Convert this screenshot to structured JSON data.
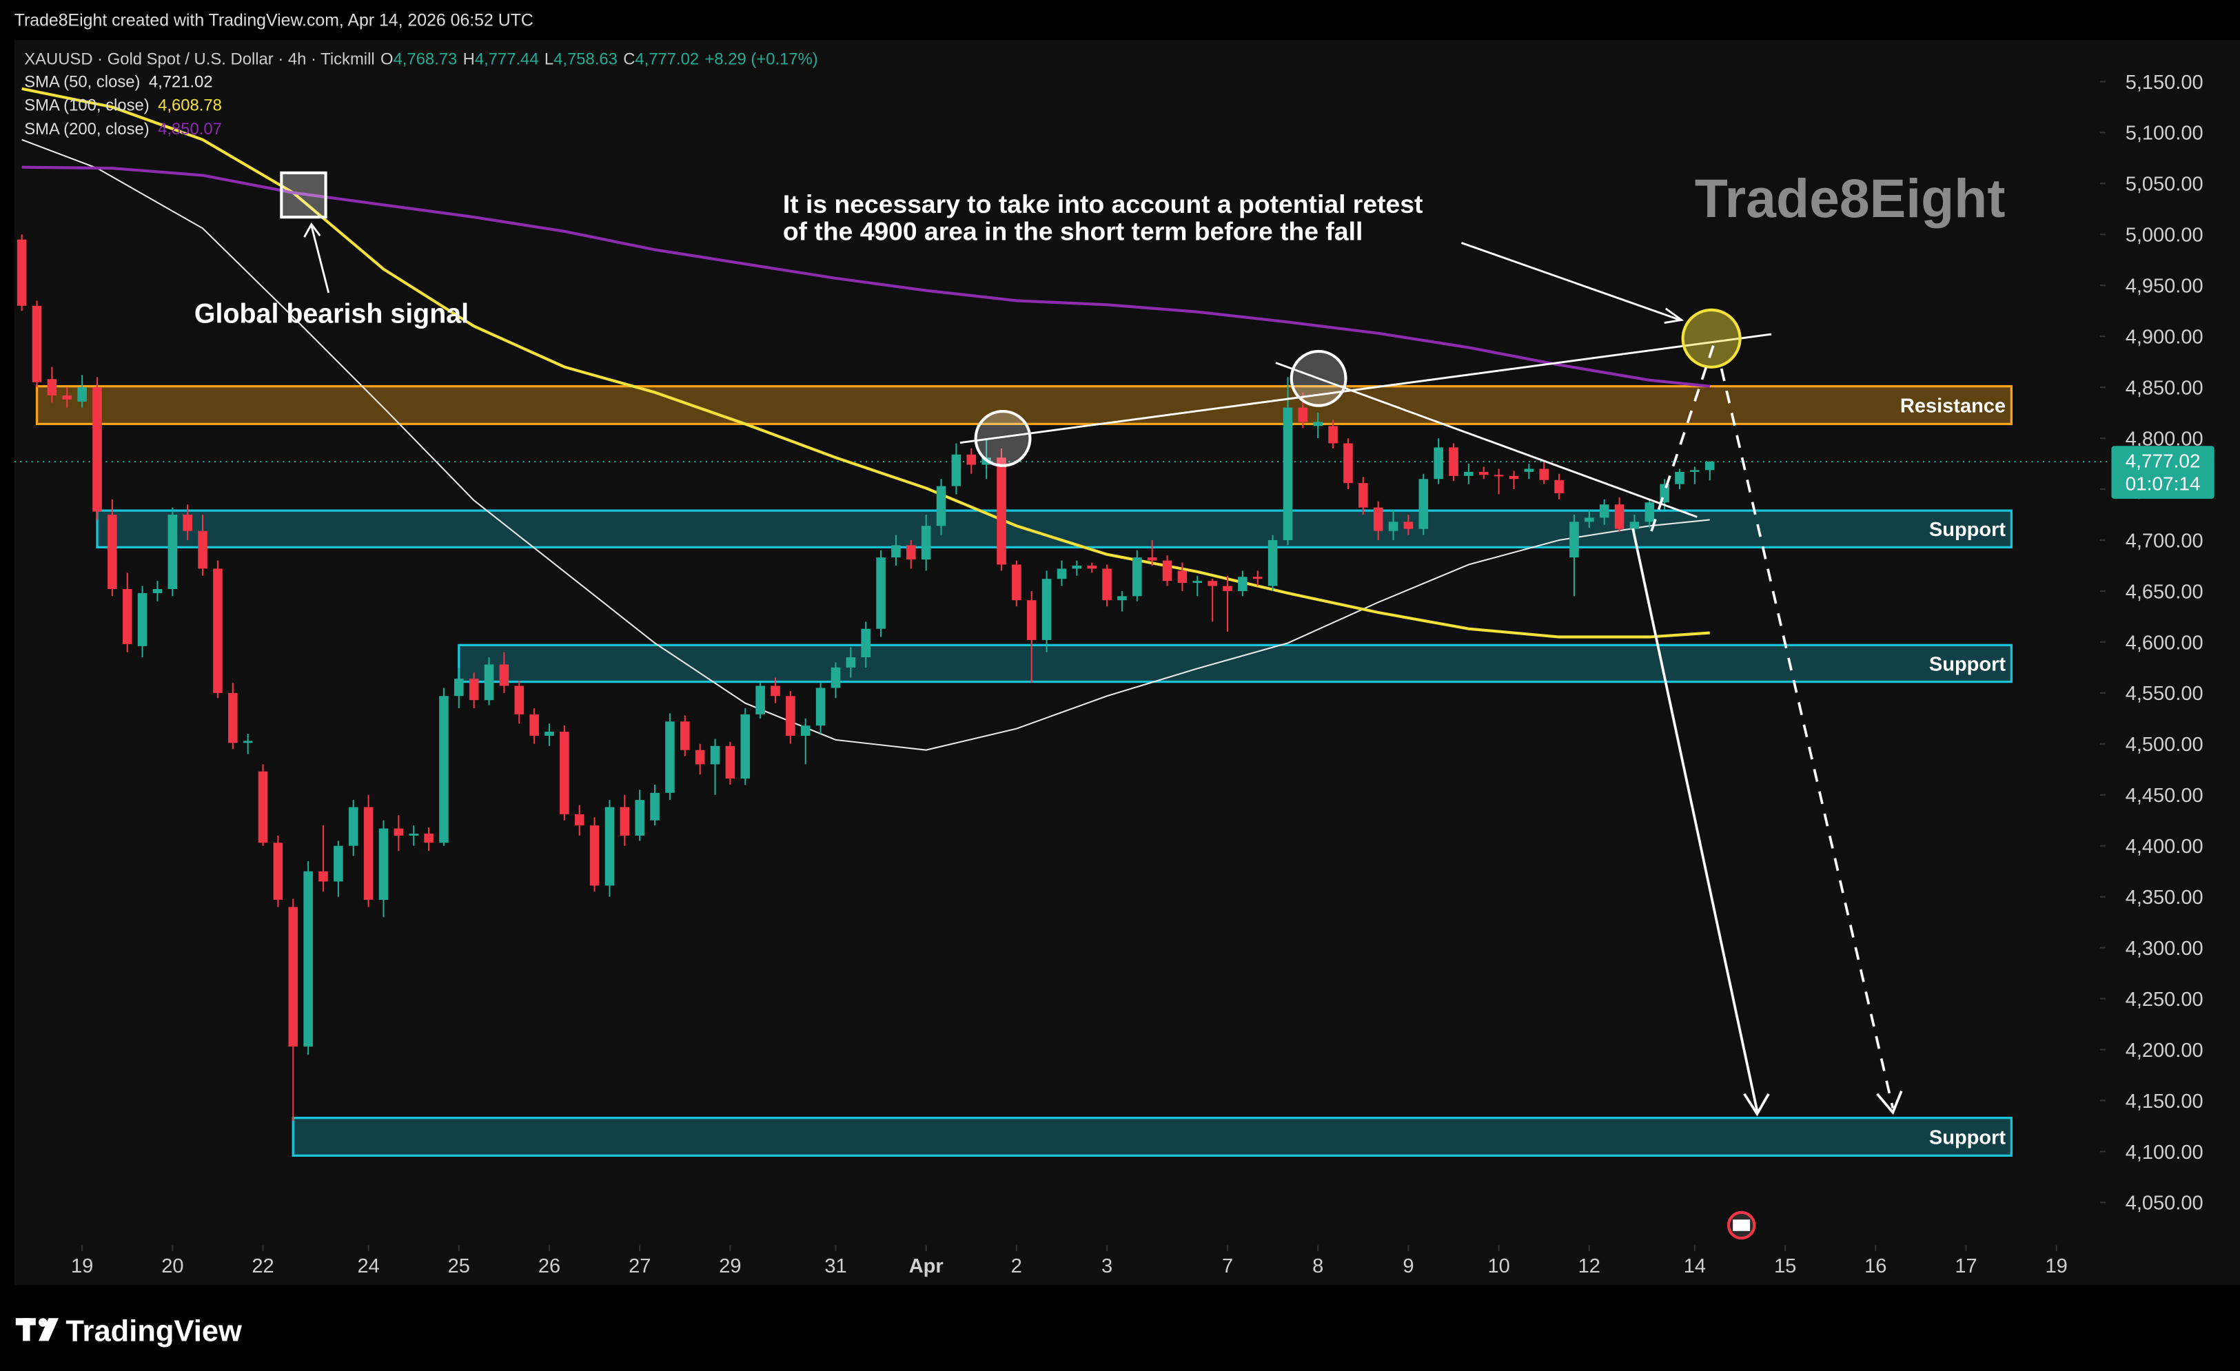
{
  "header": {
    "credit": "Trade8Eight created with TradingView.com, Apr 14, 2026 06:52 UTC",
    "symbol": "XAUUSD · Gold Spot / U.S. Dollar · 4h · Tickmill",
    "o": "O",
    "open": "4,768.73",
    "h": "H",
    "high": "4,777.44",
    "l": "L",
    "low": "4,758.63",
    "c": "C",
    "close": "4,777.02",
    "change": "+8.29 (+0.17%)"
  },
  "chart_data": {
    "type": "candlestick",
    "up_color": "#22ab94",
    "down_color": "#f23645",
    "candles": [
      [
        4995,
        5000,
        4925,
        4930
      ],
      [
        4930,
        4935,
        4850,
        4855
      ],
      [
        4858,
        4870,
        4835,
        4842
      ],
      [
        4842,
        4850,
        4830,
        4838
      ],
      [
        4836,
        4862,
        4830,
        4850
      ],
      [
        4850,
        4860,
        4720,
        4728
      ],
      [
        4725,
        4740,
        4645,
        4652
      ],
      [
        4652,
        4668,
        4590,
        4598
      ],
      [
        4596,
        4655,
        4585,
        4648
      ],
      [
        4648,
        4660,
        4640,
        4652
      ],
      [
        4652,
        4732,
        4645,
        4725
      ],
      [
        4725,
        4735,
        4700,
        4709
      ],
      [
        4709,
        4725,
        4665,
        4672
      ],
      [
        4672,
        4680,
        4545,
        4550
      ],
      [
        4550,
        4560,
        4495,
        4501
      ],
      [
        4501,
        4510,
        4490,
        4503
      ],
      [
        4473,
        4480,
        4400,
        4403
      ],
      [
        4403,
        4410,
        4340,
        4347
      ],
      [
        4340,
        4348,
        4130,
        4203
      ],
      [
        4203,
        4385,
        4195,
        4375
      ],
      [
        4375,
        4420,
        4355,
        4365
      ],
      [
        4365,
        4405,
        4350,
        4400
      ],
      [
        4400,
        4445,
        4390,
        4438
      ],
      [
        4438,
        4450,
        4340,
        4347
      ],
      [
        4347,
        4425,
        4330,
        4417
      ],
      [
        4417,
        4430,
        4395,
        4410
      ],
      [
        4410,
        4420,
        4400,
        4412
      ],
      [
        4412,
        4418,
        4395,
        4403
      ],
      [
        4403,
        4555,
        4400,
        4547
      ],
      [
        4547,
        4575,
        4535,
        4564
      ],
      [
        4564,
        4570,
        4535,
        4543
      ],
      [
        4543,
        4585,
        4538,
        4578
      ],
      [
        4578,
        4590,
        4550,
        4557
      ],
      [
        4557,
        4562,
        4520,
        4529
      ],
      [
        4529,
        4535,
        4500,
        4508
      ],
      [
        4508,
        4520,
        4498,
        4512
      ],
      [
        4512,
        4518,
        4425,
        4431
      ],
      [
        4431,
        4440,
        4410,
        4420
      ],
      [
        4420,
        4428,
        4355,
        4361
      ],
      [
        4361,
        4445,
        4350,
        4438
      ],
      [
        4438,
        4450,
        4400,
        4410
      ],
      [
        4410,
        4455,
        4405,
        4445
      ],
      [
        4425,
        4460,
        4420,
        4452
      ],
      [
        4452,
        4530,
        4445,
        4522
      ],
      [
        4522,
        4528,
        4488,
        4494
      ],
      [
        4494,
        4500,
        4470,
        4480
      ],
      [
        4480,
        4505,
        4450,
        4498
      ],
      [
        4498,
        4502,
        4460,
        4466
      ],
      [
        4466,
        4535,
        4460,
        4529
      ],
      [
        4529,
        4560,
        4525,
        4557
      ],
      [
        4557,
        4565,
        4540,
        4547
      ],
      [
        4547,
        4552,
        4500,
        4508
      ],
      [
        4508,
        4525,
        4480,
        4518
      ],
      [
        4518,
        4560,
        4510,
        4555
      ],
      [
        4555,
        4580,
        4545,
        4575
      ],
      [
        4575,
        4595,
        4565,
        4585
      ],
      [
        4585,
        4620,
        4575,
        4613
      ],
      [
        4613,
        4690,
        4605,
        4683
      ],
      [
        4683,
        4705,
        4675,
        4695
      ],
      [
        4695,
        4700,
        4672,
        4681
      ],
      [
        4681,
        4725,
        4670,
        4714
      ],
      [
        4714,
        4760,
        4705,
        4753
      ],
      [
        4753,
        4795,
        4745,
        4784
      ],
      [
        4784,
        4790,
        4765,
        4774
      ],
      [
        4774,
        4800,
        4760,
        4781
      ],
      [
        4781,
        4790,
        4670,
        4676
      ],
      [
        4676,
        4680,
        4635,
        4641
      ],
      [
        4641,
        4650,
        4560,
        4602
      ],
      [
        4602,
        4670,
        4590,
        4662
      ],
      [
        4662,
        4680,
        4655,
        4672
      ],
      [
        4672,
        4680,
        4665,
        4675
      ],
      [
        4675,
        4678,
        4668,
        4672
      ],
      [
        4672,
        4676,
        4635,
        4641
      ],
      [
        4641,
        4650,
        4630,
        4645
      ],
      [
        4645,
        4690,
        4640,
        4683
      ],
      [
        4683,
        4700,
        4675,
        4680
      ],
      [
        4680,
        4685,
        4655,
        4660
      ],
      [
        4670,
        4678,
        4650,
        4658
      ],
      [
        4658,
        4665,
        4645,
        4660
      ],
      [
        4660,
        4662,
        4620,
        4655
      ],
      [
        4655,
        4665,
        4610,
        4650
      ],
      [
        4650,
        4670,
        4645,
        4664
      ],
      [
        4664,
        4670,
        4655,
        4662
      ],
      [
        4655,
        4705,
        4650,
        4700
      ],
      [
        4700,
        4860,
        4695,
        4830
      ],
      [
        4830,
        4845,
        4810,
        4816
      ],
      [
        4812,
        4825,
        4800,
        4816
      ],
      [
        4812,
        4818,
        4790,
        4795
      ],
      [
        4795,
        4800,
        4750,
        4756
      ],
      [
        4756,
        4762,
        4725,
        4732
      ],
      [
        4732,
        4738,
        4700,
        4709
      ],
      [
        4709,
        4730,
        4700,
        4718
      ],
      [
        4718,
        4725,
        4705,
        4711
      ],
      [
        4711,
        4765,
        4705,
        4760
      ],
      [
        4760,
        4800,
        4755,
        4791
      ],
      [
        4791,
        4795,
        4758,
        4763
      ],
      [
        4763,
        4775,
        4755,
        4767
      ],
      [
        4767,
        4772,
        4760,
        4764
      ],
      [
        4764,
        4770,
        4745,
        4763
      ],
      [
        4763,
        4768,
        4750,
        4760
      ],
      [
        4767,
        4775,
        4760,
        4770
      ],
      [
        4770,
        4778,
        4755,
        4759
      ],
      [
        4759,
        4765,
        4740,
        4746
      ],
      [
        4683,
        4725,
        4645,
        4718
      ],
      [
        4718,
        4730,
        4712,
        4722
      ],
      [
        4722,
        4740,
        4715,
        4735
      ],
      [
        4735,
        4742,
        4708,
        4711
      ],
      [
        4711,
        4725,
        4705,
        4718
      ],
      [
        4718,
        4740,
        4712,
        4737
      ],
      [
        4737,
        4760,
        4730,
        4755
      ],
      [
        4755,
        4770,
        4750,
        4767
      ],
      [
        4767,
        4772,
        4755,
        4768.73
      ],
      [
        4768.73,
        4777.44,
        4758.63,
        4777.02
      ]
    ],
    "xlim": [
      -0.5,
      137.7
    ],
    "xticks": [
      {
        "value": 4,
        "label": "19"
      },
      {
        "value": 10,
        "label": "20"
      },
      {
        "value": 16,
        "label": "22"
      },
      {
        "value": 23,
        "label": "24"
      },
      {
        "value": 29,
        "label": "25"
      },
      {
        "value": 35,
        "label": "26"
      },
      {
        "value": 41,
        "label": "27"
      },
      {
        "value": 47,
        "label": "29"
      },
      {
        "value": 54,
        "label": "31"
      },
      {
        "value": 60,
        "label": "Apr"
      },
      {
        "value": 66,
        "label": "2"
      },
      {
        "value": 72,
        "label": "3"
      },
      {
        "value": 80,
        "label": "7"
      },
      {
        "value": 86,
        "label": "8"
      },
      {
        "value": 92,
        "label": "9"
      },
      {
        "value": 98,
        "label": "10"
      },
      {
        "value": 104,
        "label": "12"
      },
      {
        "value": 111,
        "label": "14"
      },
      {
        "value": 117,
        "label": "15"
      },
      {
        "value": 123,
        "label": "16"
      },
      {
        "value": 129,
        "label": "17"
      },
      {
        "value": 135,
        "label": "19"
      }
    ],
    "ylim": [
      4008,
      5230
    ],
    "yticks": [
      {
        "value": 5150,
        "label": "5,150.00"
      },
      {
        "value": 5100,
        "label": "5,100.00"
      },
      {
        "value": 5050,
        "label": "5,050.00"
      },
      {
        "value": 5000,
        "label": "5,000.00"
      },
      {
        "value": 4950,
        "label": "4,950.00"
      },
      {
        "value": 4900,
        "label": "4,900.00"
      },
      {
        "value": 4850,
        "label": "4,850.00"
      },
      {
        "value": 4800,
        "label": "4,800.00"
      },
      {
        "value": 4750,
        "label": "4,750.00"
      },
      {
        "value": 4700,
        "label": "4,700.00"
      },
      {
        "value": 4650,
        "label": "4,650.00"
      },
      {
        "value": 4600,
        "label": "4,600.00"
      },
      {
        "value": 4550,
        "label": "4,550.00"
      },
      {
        "value": 4500,
        "label": "4,500.00"
      },
      {
        "value": 4450,
        "label": "4,450.00"
      },
      {
        "value": 4400,
        "label": "4,400.00"
      },
      {
        "value": 4350,
        "label": "4,350.00"
      },
      {
        "value": 4300,
        "label": "4,300.00"
      },
      {
        "value": 4250,
        "label": "4,250.00"
      },
      {
        "value": 4200,
        "label": "4,200.00"
      },
      {
        "value": 4150,
        "label": "4,150.00"
      },
      {
        "value": 4100,
        "label": "4,100.00"
      },
      {
        "value": 4050,
        "label": "4,050.00"
      }
    ],
    "series": [
      {
        "name": "SMA (50, close)",
        "value_label": "4,721.02",
        "color": "#e8e8e8",
        "x": [
          0,
          5,
          12,
          18,
          24,
          30,
          36,
          42,
          48,
          54,
          60,
          66,
          72,
          78,
          84,
          90,
          96,
          102,
          108,
          112
        ],
        "values": [
          5093,
          5065,
          5006,
          4919,
          4830,
          4739,
          4669,
          4599,
          4540,
          4504,
          4494,
          4515,
          4547,
          4574,
          4599,
          4639,
          4676,
          4700,
          4714,
          4720
        ]
      },
      {
        "name": "SMA (100, close)",
        "value_label": "4,608.78",
        "color": "#f5e13b",
        "x": [
          0,
          6,
          12,
          18,
          24,
          30,
          36,
          42,
          48,
          54,
          60,
          66,
          72,
          78,
          84,
          90,
          96,
          102,
          108,
          112
        ],
        "values": [
          5143,
          5125,
          5093,
          5041,
          4966,
          4910,
          4870,
          4845,
          4814,
          4781,
          4751,
          4714,
          4686,
          4669,
          4648,
          4629,
          4613,
          4605,
          4605,
          4609
        ]
      },
      {
        "name": "SMA (200, close)",
        "value_label": "4,850.07",
        "color": "#8e2cb0",
        "x": [
          0,
          6,
          12,
          18,
          24,
          30,
          36,
          42,
          48,
          54,
          60,
          66,
          72,
          78,
          84,
          90,
          96,
          102,
          108,
          112
        ],
        "values": [
          5066,
          5065,
          5058,
          5041,
          5029,
          5017,
          5003,
          4985,
          4971,
          4957,
          4945,
          4935,
          4931,
          4924,
          4914,
          4903,
          4889,
          4872,
          4857,
          4851
        ]
      }
    ],
    "zones": [
      {
        "label": "Resistance",
        "from": 1,
        "low": 4814,
        "high": 4851,
        "color": "#f7a21b"
      },
      {
        "label": "Support",
        "from": 5,
        "low": 4693,
        "high": 4729,
        "color": "#18c3d8"
      },
      {
        "label": "Support",
        "from": 29,
        "low": 4561,
        "high": 4597,
        "color": "#18c3d8"
      },
      {
        "label": "Support",
        "from": 18,
        "low": 4096,
        "high": 4133,
        "color": "#18c3d8"
      }
    ],
    "last_price": {
      "value": 4777.02,
      "label": "4,777.02",
      "countdown": "01:07:14"
    },
    "watermark": "Trade8Eight",
    "annotations": [
      "It is necessary to take into account a potential retest",
      "of the 4900 area in the short term before the fall",
      "Global bearish signal"
    ]
  },
  "footer": {
    "brand": "TradingView"
  }
}
